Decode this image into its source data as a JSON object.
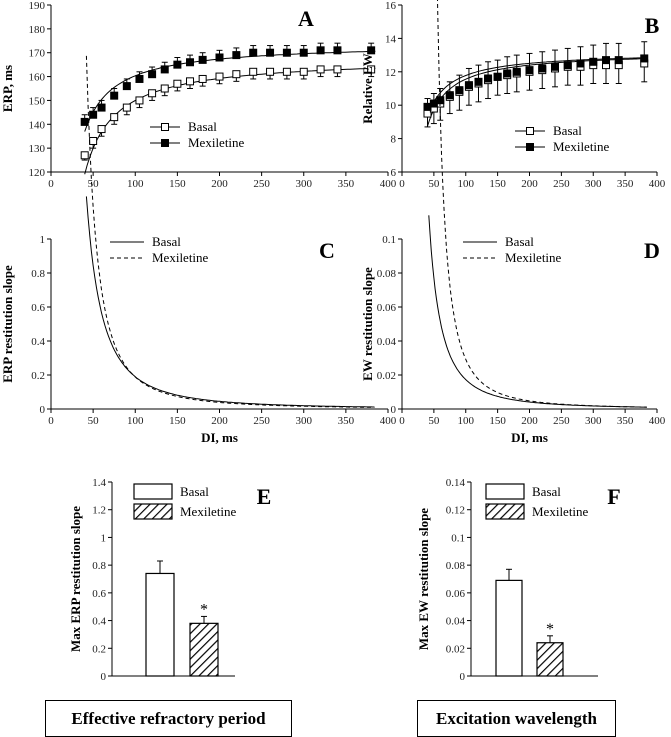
{
  "chart_data": [
    {
      "panel": "A",
      "type": "line",
      "xlim": [
        0,
        400
      ],
      "ylim": [
        120,
        190
      ],
      "xticks": [
        0,
        50,
        100,
        150,
        200,
        250,
        300,
        350,
        400
      ],
      "yticks": [
        120,
        130,
        140,
        150,
        160,
        170,
        180,
        190
      ],
      "xlabel": "",
      "ylabel": "ERP, ms",
      "fit": {
        "Basal": {
          "a": 168,
          "b": 1712,
          "c": 5
        },
        "Mexiletine": {
          "a": 174,
          "b": 1298,
          "c": 5
        }
      },
      "series": [
        {
          "name": "Basal",
          "marker": "open-square",
          "x": [
            40,
            50,
            60,
            75,
            90,
            105,
            120,
            135,
            150,
            165,
            180,
            200,
            220,
            240,
            260,
            280,
            300,
            320,
            340,
            380
          ],
          "y": [
            127,
            133,
            138,
            143,
            147,
            150,
            153,
            155,
            157,
            158,
            159,
            160,
            161,
            162,
            162,
            162,
            162,
            163,
            163,
            163
          ],
          "err": [
            2,
            3,
            3,
            3,
            3,
            3,
            3,
            3,
            3,
            3,
            3,
            3,
            3,
            3,
            3,
            3,
            3,
            3,
            3,
            3
          ]
        },
        {
          "name": "Mexiletine",
          "marker": "filled-square",
          "x": [
            40,
            50,
            60,
            75,
            90,
            105,
            120,
            135,
            150,
            165,
            180,
            200,
            220,
            240,
            260,
            280,
            300,
            320,
            340,
            380
          ],
          "y": [
            141,
            144,
            147,
            152,
            156,
            159,
            161,
            163,
            165,
            166,
            167,
            168,
            169,
            170,
            170,
            170,
            170,
            171,
            171,
            171
          ],
          "err": [
            3,
            3,
            3,
            3,
            3,
            3,
            3,
            3,
            3,
            3,
            3,
            3,
            3,
            3,
            3,
            3,
            3,
            3,
            3,
            3
          ]
        }
      ]
    },
    {
      "panel": "B",
      "type": "line",
      "xlim": [
        0,
        400
      ],
      "ylim": [
        6,
        16
      ],
      "xticks": [
        0,
        50,
        100,
        150,
        200,
        250,
        300,
        350,
        400
      ],
      "yticks": [
        6,
        8,
        10,
        12,
        14,
        16
      ],
      "xlabel": "",
      "ylabel": "Relative EW",
      "fit": {
        "Basal": {
          "a": 13.2,
          "b": 156,
          "c": 5
        },
        "Mexiletine": {
          "a": 13.2,
          "b": 135,
          "c": 5
        }
      },
      "series": [
        {
          "name": "Basal",
          "marker": "open-square",
          "x": [
            40,
            50,
            60,
            75,
            90,
            105,
            120,
            135,
            150,
            165,
            180,
            200,
            220,
            240,
            260,
            280,
            300,
            320,
            340,
            380
          ],
          "y": [
            9.5,
            9.8,
            10.1,
            10.5,
            10.8,
            11.1,
            11.3,
            11.5,
            11.7,
            11.8,
            11.9,
            12.0,
            12.1,
            12.2,
            12.3,
            12.3,
            12.4,
            12.4,
            12.4,
            12.5
          ],
          "err": [
            0.8,
            0.9,
            1.0,
            1.0,
            1.1,
            1.1,
            1.1,
            1.1,
            1.1,
            1.1,
            1.1,
            1.1,
            1.1,
            1.1,
            1.1,
            1.1,
            1.1,
            1.1,
            1.1,
            1.1
          ]
        },
        {
          "name": "Mexiletine",
          "marker": "filled-square",
          "x": [
            40,
            50,
            60,
            75,
            90,
            105,
            120,
            135,
            150,
            165,
            180,
            200,
            220,
            240,
            260,
            280,
            300,
            320,
            340,
            380
          ],
          "y": [
            9.9,
            10.1,
            10.3,
            10.6,
            10.9,
            11.2,
            11.4,
            11.6,
            11.7,
            11.9,
            12.0,
            12.1,
            12.2,
            12.3,
            12.4,
            12.5,
            12.6,
            12.7,
            12.7,
            12.8
          ],
          "err": [
            0.5,
            0.6,
            0.7,
            0.8,
            0.9,
            1.0,
            1.0,
            1.0,
            1.0,
            1.0,
            1.0,
            1.0,
            1.0,
            1.0,
            1.0,
            1.0,
            1.0,
            1.0,
            1.0,
            1.0
          ]
        }
      ]
    },
    {
      "panel": "C",
      "type": "line",
      "xlim": [
        0,
        400
      ],
      "ylim": [
        0,
        1.0
      ],
      "xticks": [
        0,
        50,
        100,
        150,
        200,
        250,
        300,
        350,
        400
      ],
      "yticks": [
        0,
        0.2,
        0.4,
        0.6,
        0.8,
        1.0
      ],
      "xlabel": "DI, ms",
      "ylabel": "ERP restitution slope",
      "curves": [
        {
          "name": "Basal",
          "style": "solid",
          "x0": 42,
          "x1": 385,
          "a": 1712,
          "c": 5
        },
        {
          "name": "Mexiletine",
          "style": "dashed",
          "x0": 42,
          "x1": 385,
          "a": 1298,
          "c": 17
        }
      ]
    },
    {
      "panel": "D",
      "type": "line",
      "xlim": [
        0,
        400
      ],
      "ylim": [
        0,
        0.1
      ],
      "xticks": [
        0,
        50,
        100,
        150,
        200,
        250,
        300,
        350,
        400
      ],
      "yticks": [
        0,
        0.02,
        0.04,
        0.06,
        0.08,
        0.1
      ],
      "xlabel": "DI, ms",
      "ylabel": "EW restitution slope",
      "curves": [
        {
          "name": "Basal",
          "style": "solid",
          "x0": 42,
          "x1": 385,
          "a": 156,
          "c": 5
        },
        {
          "name": "Mexiletine",
          "style": "dashed",
          "x0": 42,
          "x1": 385,
          "a": 135,
          "c": 32
        }
      ]
    },
    {
      "panel": "E",
      "type": "bar",
      "ylim": [
        0,
        1.4
      ],
      "yticks": [
        0,
        0.2,
        0.4,
        0.6,
        0.8,
        1.0,
        1.2,
        1.4
      ],
      "ylabel": "Max ERP restitution slope",
      "categories": [
        "Basal",
        "Mexiletine"
      ],
      "values": [
        0.74,
        0.38
      ],
      "errors": [
        0.09,
        0.05
      ],
      "annotation": "*"
    },
    {
      "panel": "F",
      "type": "bar",
      "ylim": [
        0,
        0.14
      ],
      "yticks": [
        0,
        0.02,
        0.04,
        0.06,
        0.08,
        0.1,
        0.12,
        0.14
      ],
      "ylabel": "Max EW restitution slope",
      "categories": [
        "Basal",
        "Mexiletine"
      ],
      "values": [
        0.069,
        0.024
      ],
      "errors": [
        0.008,
        0.005
      ],
      "annotation": "*"
    }
  ],
  "captions": {
    "left": "Effective refractory period",
    "right": "Excitation wavelength"
  }
}
